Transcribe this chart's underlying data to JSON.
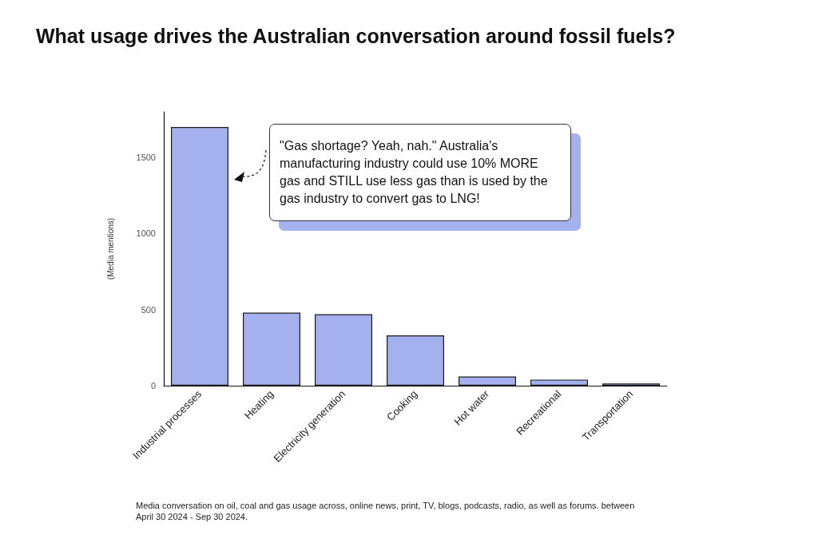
{
  "chart_data": {
    "type": "bar",
    "title": "What usage drives the Australian conversation around fossil fuels?",
    "ylabel": "(Media mentions)",
    "categories": [
      "Industrial processes",
      "Heating",
      "Electricity generation",
      "Cooking",
      "Hot water",
      "Recreational",
      "Transportation"
    ],
    "values": [
      1700,
      480,
      470,
      330,
      60,
      40,
      15
    ],
    "color": "#a5b0ee",
    "ylim": [
      0,
      1800
    ],
    "yticks": [
      0,
      500,
      1000,
      1500
    ],
    "grid": false,
    "annotations": [
      "\"Gas shortage? Yeah, nah.\" Australia's manufacturing industry could use 10% MORE gas and STILL use less gas than is used by the gas industry to convert gas to LNG!",
      "Media conversation on oil, coal and gas usage across, online news, print, TV, blogs, podcasts, radio, as well as forums. between April 30 2024 - Sep 30 2024."
    ]
  }
}
